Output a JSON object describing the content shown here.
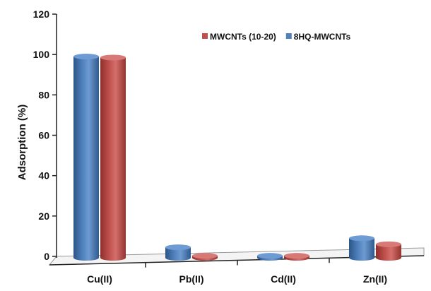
{
  "chart_data": {
    "type": "bar",
    "title": "",
    "xlabel": "",
    "ylabel": "Adsorption  (%)",
    "ylim": [
      0,
      120
    ],
    "yticks": [
      0,
      20,
      40,
      60,
      80,
      100,
      120
    ],
    "categories": [
      "Cu(II)",
      "Pb(II)",
      "Cd(II)",
      "Zn(II)"
    ],
    "series": [
      {
        "name": "8HQ-MWCNTs",
        "color": "#4f81bd",
        "values": [
          99,
          4.5,
          0.3,
          9
        ]
      },
      {
        "name": "MWCNTs (10-20)",
        "color": "#c0504d",
        "values": [
          98.5,
          0.3,
          0.3,
          6
        ]
      }
    ],
    "legend": {
      "position": "top-right",
      "order": [
        "MWCNTs (10-20)",
        "8HQ-MWCNTs"
      ]
    },
    "grid": false,
    "style": "3d-cylinder"
  }
}
